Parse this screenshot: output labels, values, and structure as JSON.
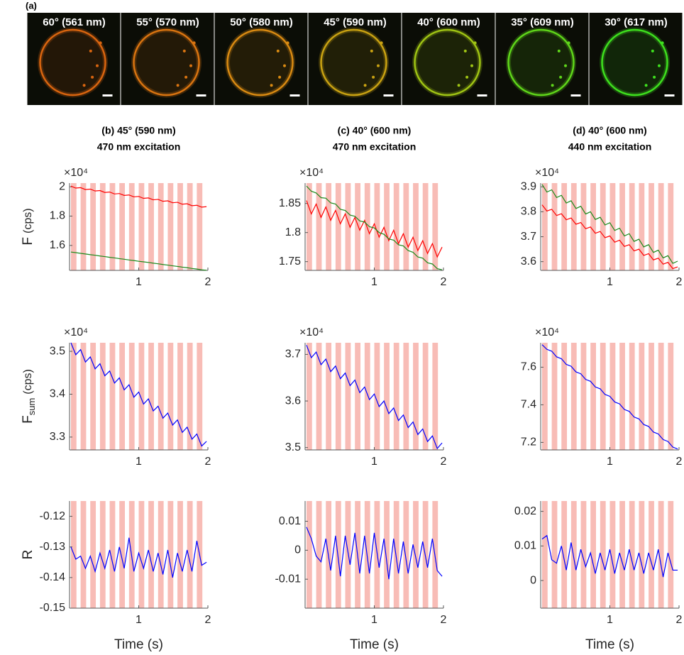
{
  "panel_a": {
    "label": "(a)",
    "tiles": [
      {
        "label": "60° (561 nm)",
        "color": "#d9650f"
      },
      {
        "label": "55° (570 nm)",
        "color": "#d97410"
      },
      {
        "label": "50° (580 nm)",
        "color": "#d98a12"
      },
      {
        "label": "45° (590 nm)",
        "color": "#c9a212"
      },
      {
        "label": "40° (600 nm)",
        "color": "#9fc414"
      },
      {
        "label": "35° (609 nm)",
        "color": "#5fd61a"
      },
      {
        "label": "30° (617 nm)",
        "color": "#3ee01e"
      }
    ]
  },
  "stimulus": {
    "color": "#f8bcb6",
    "width": 0.08,
    "starts": [
      0.02,
      0.16,
      0.3,
      0.44,
      0.58,
      0.72,
      0.86,
      1.0,
      1.14,
      1.28,
      1.42,
      1.56,
      1.7,
      1.84
    ]
  },
  "chart_data": [
    {
      "type": "line",
      "title": "(b) 45° (590 nm)",
      "subtitle": "470 nm excitation",
      "ylabel": "F",
      "ylabel_unit": "(cps)",
      "multiplier": "×10⁴",
      "x": [
        0.02,
        0.09,
        0.16,
        0.23,
        0.3,
        0.37,
        0.44,
        0.51,
        0.58,
        0.65,
        0.72,
        0.79,
        0.86,
        0.93,
        1.0,
        1.07,
        1.14,
        1.21,
        1.28,
        1.35,
        1.42,
        1.49,
        1.56,
        1.63,
        1.7,
        1.77,
        1.84,
        1.91,
        1.98
      ],
      "xlim": [
        0,
        2
      ],
      "xticks": [
        1,
        2
      ],
      "ylim": [
        1.43,
        2.025
      ],
      "yticks": [
        1.6,
        1.8,
        2
      ],
      "series": [
        {
          "color": "#ff0000",
          "values": [
            2.004,
            1.991,
            1.994,
            1.981,
            1.984,
            1.971,
            1.974,
            1.961,
            1.964,
            1.951,
            1.954,
            1.941,
            1.944,
            1.931,
            1.934,
            1.921,
            1.924,
            1.911,
            1.914,
            1.901,
            1.904,
            1.891,
            1.894,
            1.881,
            1.884,
            1.871,
            1.874,
            1.861,
            1.864
          ]
        },
        {
          "color": "#1a8a1a",
          "values": [
            1.555,
            1.551,
            1.546,
            1.542,
            1.537,
            1.533,
            1.528,
            1.524,
            1.519,
            1.515,
            1.51,
            1.506,
            1.501,
            1.497,
            1.492,
            1.488,
            1.484,
            1.479,
            1.475,
            1.47,
            1.466,
            1.461,
            1.457,
            1.452,
            1.448,
            1.443,
            1.439,
            1.434,
            1.431
          ]
        }
      ]
    },
    {
      "type": "line",
      "title": "(c) 40° (600 nm)",
      "subtitle": "470 nm excitation",
      "multiplier": "×10⁴",
      "x": [
        0.02,
        0.09,
        0.16,
        0.23,
        0.3,
        0.37,
        0.44,
        0.51,
        0.58,
        0.65,
        0.72,
        0.79,
        0.86,
        0.93,
        1.0,
        1.07,
        1.14,
        1.21,
        1.28,
        1.35,
        1.42,
        1.49,
        1.56,
        1.63,
        1.7,
        1.77,
        1.84,
        1.91,
        1.98
      ],
      "xlim": [
        0,
        2
      ],
      "xticks": [
        1,
        2
      ],
      "ylim": [
        1.735,
        1.885
      ],
      "yticks": [
        1.75,
        1.8,
        1.85
      ],
      "series": [
        {
          "color": "#ff0000",
          "values": [
            1.855,
            1.832,
            1.849,
            1.826,
            1.844,
            1.821,
            1.838,
            1.815,
            1.832,
            1.809,
            1.826,
            1.804,
            1.821,
            1.798,
            1.815,
            1.792,
            1.809,
            1.786,
            1.804,
            1.781,
            1.798,
            1.775,
            1.792,
            1.769,
            1.786,
            1.764,
            1.781,
            1.758,
            1.775
          ]
        },
        {
          "color": "#1a8a1a",
          "values": [
            1.88,
            1.871,
            1.868,
            1.86,
            1.859,
            1.851,
            1.849,
            1.84,
            1.838,
            1.83,
            1.828,
            1.82,
            1.818,
            1.81,
            1.808,
            1.8,
            1.797,
            1.789,
            1.787,
            1.779,
            1.777,
            1.769,
            1.766,
            1.758,
            1.756,
            1.748,
            1.746,
            1.738,
            1.736
          ]
        }
      ]
    },
    {
      "type": "line",
      "title": "(d) 40° (600 nm)",
      "subtitle": "440 nm excitation",
      "multiplier": "×10⁴",
      "x": [
        0.02,
        0.09,
        0.16,
        0.23,
        0.3,
        0.37,
        0.44,
        0.51,
        0.58,
        0.65,
        0.72,
        0.79,
        0.86,
        0.93,
        1.0,
        1.07,
        1.14,
        1.21,
        1.28,
        1.35,
        1.42,
        1.49,
        1.56,
        1.63,
        1.7,
        1.77,
        1.84,
        1.91,
        1.98
      ],
      "xlim": [
        0,
        2
      ],
      "xticks": [
        1,
        2
      ],
      "ylim": [
        3.565,
        3.915
      ],
      "yticks": [
        3.6,
        3.7,
        3.8,
        3.9
      ],
      "series": [
        {
          "color": "#ff0000",
          "values": [
            3.828,
            3.803,
            3.81,
            3.785,
            3.792,
            3.768,
            3.775,
            3.75,
            3.757,
            3.732,
            3.739,
            3.714,
            3.721,
            3.696,
            3.703,
            3.678,
            3.686,
            3.661,
            3.668,
            3.643,
            3.65,
            3.625,
            3.632,
            3.607,
            3.614,
            3.59,
            3.597,
            3.572,
            3.579
          ]
        },
        {
          "color": "#1a8a1a",
          "values": [
            3.91,
            3.879,
            3.888,
            3.857,
            3.866,
            3.835,
            3.844,
            3.813,
            3.822,
            3.791,
            3.8,
            3.769,
            3.778,
            3.747,
            3.756,
            3.725,
            3.734,
            3.703,
            3.712,
            3.681,
            3.69,
            3.659,
            3.668,
            3.637,
            3.646,
            3.615,
            3.624,
            3.593,
            3.602
          ]
        }
      ]
    },
    {
      "type": "line",
      "ylabel": "F",
      "ylabel_subscript": "sum",
      "ylabel_unit": "(cps)",
      "multiplier": "×10⁴",
      "x": [
        0.02,
        0.09,
        0.16,
        0.23,
        0.3,
        0.37,
        0.44,
        0.51,
        0.58,
        0.65,
        0.72,
        0.79,
        0.86,
        0.93,
        1.0,
        1.07,
        1.14,
        1.21,
        1.28,
        1.35,
        1.42,
        1.49,
        1.56,
        1.63,
        1.7,
        1.77,
        1.84,
        1.91,
        1.98
      ],
      "xlim": [
        0,
        2
      ],
      "xticks": [
        1,
        2
      ],
      "ylim": [
        3.27,
        3.52
      ],
      "yticks": [
        3.3,
        3.4,
        3.5
      ],
      "series": [
        {
          "color": "#0000ff",
          "values": [
            3.52,
            3.492,
            3.504,
            3.475,
            3.487,
            3.459,
            3.471,
            3.443,
            3.454,
            3.426,
            3.438,
            3.41,
            3.422,
            3.393,
            3.405,
            3.377,
            3.389,
            3.361,
            3.372,
            3.344,
            3.356,
            3.328,
            3.34,
            3.311,
            3.323,
            3.295,
            3.307,
            3.279,
            3.29
          ]
        }
      ]
    },
    {
      "type": "line",
      "multiplier": "×10⁴",
      "x": [
        0.02,
        0.09,
        0.16,
        0.23,
        0.3,
        0.37,
        0.44,
        0.51,
        0.58,
        0.65,
        0.72,
        0.79,
        0.86,
        0.93,
        1.0,
        1.07,
        1.14,
        1.21,
        1.28,
        1.35,
        1.42,
        1.49,
        1.56,
        1.63,
        1.7,
        1.77,
        1.84,
        1.91,
        1.98
      ],
      "xlim": [
        0,
        2
      ],
      "xticks": [
        1,
        2
      ],
      "ylim": [
        3.495,
        3.725
      ],
      "yticks": [
        3.5,
        3.6,
        3.7
      ],
      "series": [
        {
          "color": "#0000ff",
          "values": [
            3.72,
            3.693,
            3.705,
            3.678,
            3.69,
            3.663,
            3.675,
            3.648,
            3.66,
            3.633,
            3.645,
            3.618,
            3.63,
            3.603,
            3.615,
            3.588,
            3.6,
            3.573,
            3.585,
            3.558,
            3.57,
            3.543,
            3.555,
            3.528,
            3.54,
            3.513,
            3.525,
            3.498,
            3.51
          ]
        }
      ]
    },
    {
      "type": "line",
      "multiplier": "×10⁴",
      "x": [
        0.02,
        0.09,
        0.16,
        0.23,
        0.3,
        0.37,
        0.44,
        0.51,
        0.58,
        0.65,
        0.72,
        0.79,
        0.86,
        0.93,
        1.0,
        1.07,
        1.14,
        1.21,
        1.28,
        1.35,
        1.42,
        1.49,
        1.56,
        1.63,
        1.7,
        1.77,
        1.84,
        1.91,
        1.98
      ],
      "xlim": [
        0,
        2
      ],
      "xticks": [
        1,
        2
      ],
      "ylim": [
        7.16,
        7.73
      ],
      "yticks": [
        7.2,
        7.4,
        7.6
      ],
      "series": [
        {
          "color": "#0000ff",
          "values": [
            7.72,
            7.695,
            7.685,
            7.655,
            7.645,
            7.615,
            7.605,
            7.575,
            7.565,
            7.535,
            7.525,
            7.495,
            7.485,
            7.455,
            7.445,
            7.415,
            7.405,
            7.375,
            7.365,
            7.335,
            7.325,
            7.295,
            7.285,
            7.255,
            7.245,
            7.215,
            7.205,
            7.175,
            7.165
          ]
        }
      ]
    },
    {
      "type": "line",
      "ylabel": "R",
      "xlabel": "Time (s)",
      "x": [
        0.02,
        0.09,
        0.16,
        0.23,
        0.3,
        0.37,
        0.44,
        0.51,
        0.58,
        0.65,
        0.72,
        0.79,
        0.86,
        0.93,
        1.0,
        1.07,
        1.14,
        1.21,
        1.28,
        1.35,
        1.42,
        1.49,
        1.56,
        1.63,
        1.7,
        1.77,
        1.84,
        1.91,
        1.98
      ],
      "xlim": [
        0,
        2
      ],
      "xticks": [
        1,
        2
      ],
      "ylim": [
        -0.15,
        -0.115
      ],
      "yticks": [
        -0.15,
        -0.14,
        -0.13,
        -0.12
      ],
      "series": [
        {
          "color": "#0000ff",
          "values": [
            -0.13,
            -0.134,
            -0.133,
            -0.137,
            -0.133,
            -0.138,
            -0.132,
            -0.137,
            -0.131,
            -0.138,
            -0.13,
            -0.137,
            -0.127,
            -0.138,
            -0.132,
            -0.137,
            -0.131,
            -0.138,
            -0.132,
            -0.139,
            -0.131,
            -0.14,
            -0.132,
            -0.138,
            -0.131,
            -0.138,
            -0.128,
            -0.136,
            -0.135
          ]
        }
      ]
    },
    {
      "type": "line",
      "xlabel": "Time (s)",
      "x": [
        0.02,
        0.09,
        0.16,
        0.23,
        0.3,
        0.37,
        0.44,
        0.51,
        0.58,
        0.65,
        0.72,
        0.79,
        0.86,
        0.93,
        1.0,
        1.07,
        1.14,
        1.21,
        1.28,
        1.35,
        1.42,
        1.49,
        1.56,
        1.63,
        1.7,
        1.77,
        1.84,
        1.91,
        1.98
      ],
      "xlim": [
        0,
        2
      ],
      "xticks": [
        1,
        2
      ],
      "ylim": [
        -0.02,
        0.017
      ],
      "yticks": [
        -0.01,
        0,
        0.01
      ],
      "series": [
        {
          "color": "#0000ff",
          "values": [
            0.008,
            0.004,
            -0.002,
            -0.004,
            0.004,
            -0.007,
            0.005,
            -0.009,
            0.005,
            -0.005,
            0.006,
            -0.008,
            0.005,
            -0.008,
            0.006,
            -0.006,
            0.004,
            -0.01,
            0.004,
            -0.008,
            0.003,
            -0.008,
            0.002,
            -0.006,
            0.003,
            -0.006,
            0.004,
            -0.007,
            -0.009
          ]
        }
      ]
    },
    {
      "type": "line",
      "xlabel": "Time (s)",
      "x": [
        0.02,
        0.09,
        0.16,
        0.23,
        0.3,
        0.37,
        0.44,
        0.51,
        0.58,
        0.65,
        0.72,
        0.79,
        0.86,
        0.93,
        1.0,
        1.07,
        1.14,
        1.21,
        1.28,
        1.35,
        1.42,
        1.49,
        1.56,
        1.63,
        1.7,
        1.77,
        1.84,
        1.91,
        1.98
      ],
      "xlim": [
        0,
        2
      ],
      "xticks": [
        1,
        2
      ],
      "ylim": [
        -0.008,
        0.023
      ],
      "yticks": [
        0,
        0.01,
        0.02
      ],
      "series": [
        {
          "color": "#0000ff",
          "values": [
            0.012,
            0.013,
            0.006,
            0.005,
            0.01,
            0.003,
            0.011,
            0.003,
            0.009,
            0.004,
            0.008,
            0.002,
            0.008,
            0.003,
            0.009,
            0.002,
            0.008,
            0.003,
            0.009,
            0.003,
            0.008,
            0.002,
            0.008,
            0.003,
            0.009,
            0.001,
            0.008,
            0.003,
            0.003
          ]
        }
      ]
    }
  ]
}
